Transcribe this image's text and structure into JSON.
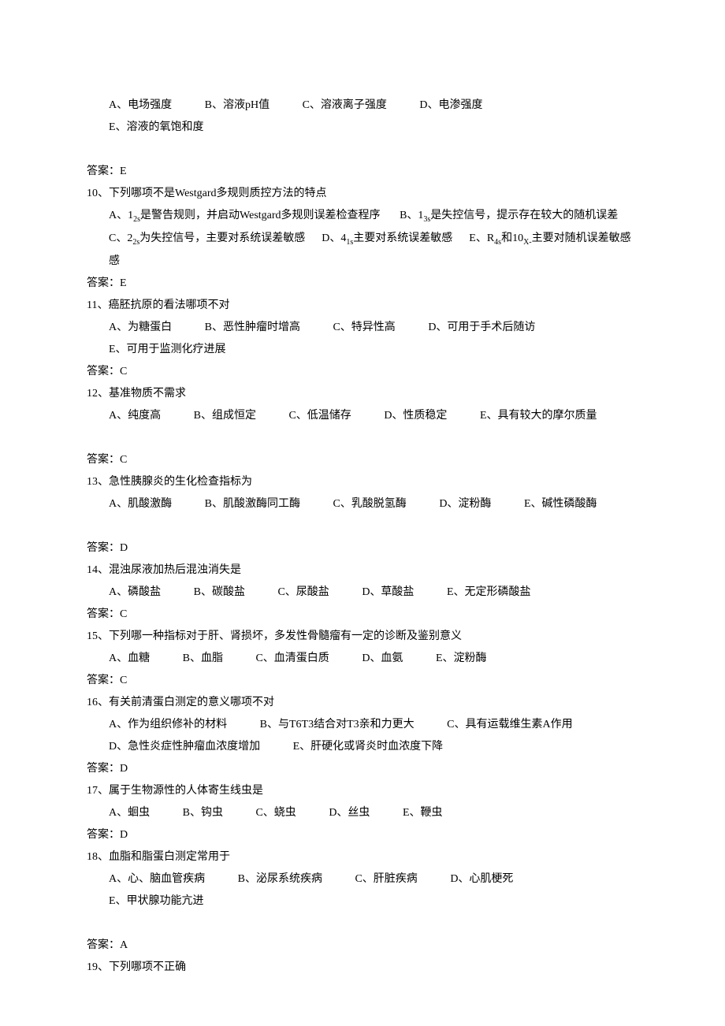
{
  "font": {
    "family": "SimSun",
    "size_pt": 10.5
  },
  "colors": {
    "text": "#000000",
    "background": "#ffffff"
  },
  "q9_options": {
    "a": "A、电场强度",
    "b": "B、溶液pH值",
    "c": "C、溶液离子强度",
    "d": "D、电渗强度",
    "e": "E、溶液的氧饱和度"
  },
  "a9": "答案：E",
  "q10": "10、下列哪项不是Westgard多规则质控方法的特点",
  "q10_opts": {
    "a_prefix": "A、1",
    "a_sub": "2s",
    "a_suffix": "是警告规则，并启动Westgard多规则误差检查程序",
    "b_prefix": "B、1",
    "b_sub": "3s",
    "b_suffix": "是失控信号，提示存在较大的随机误差",
    "c_prefix": "C、2",
    "c_sub": "2s",
    "c_suffix": "为失控信号，主要对系统误差敏感",
    "d_prefix": "D、4",
    "d_sub": "1s",
    "d_suffix": "主要对系统误差敏感",
    "e1_prefix": "E、R",
    "e1_sub": "4s",
    "e_mid": "和10",
    "e2_sub": "X-",
    "e_suffix": "主要对随机误差敏感"
  },
  "a10": "答案：E",
  "q11": "11、癌胚抗原的看法哪项不对",
  "q11_opts": {
    "a": "A、为糖蛋白",
    "b": "B、恶性肿瘤时增高",
    "c": "C、特异性高",
    "d": "D、可用于手术后随访",
    "e": "E、可用于监测化疗进展"
  },
  "a11": "答案：C",
  "q12": "12、基准物质不需求",
  "q12_opts": {
    "a": "A、纯度高",
    "b": "B、组成恒定",
    "c": "C、低温储存",
    "d": "D、性质稳定",
    "e": "E、具有较大的摩尔质量"
  },
  "a12": "答案：C",
  "q13": "13、急性胰腺炎的生化检查指标为",
  "q13_opts": {
    "a": "A、肌酸激酶",
    "b": "B、肌酸激酶同工酶",
    "c": "C、乳酸脱氢酶",
    "d": "D、淀粉酶",
    "e": "E、碱性磷酸酶"
  },
  "a13": "答案：D",
  "q14": "14、混浊尿液加热后混浊消失是",
  "q14_opts": {
    "a": "A、磷酸盐",
    "b": "B、碳酸盐",
    "c": "C、尿酸盐",
    "d": "D、草酸盐",
    "e": "E、无定形磷酸盐"
  },
  "a14": "答案：C",
  "q15": "15、下列哪一种指标对于肝、肾损坏，多发性骨髓瘤有一定的诊断及鉴别意义",
  "q15_opts": {
    "a": "A、血糖",
    "b": "B、血脂",
    "c": "C、血清蛋白质",
    "d": "D、血氨",
    "e": "E、淀粉酶"
  },
  "a15": "答案：C",
  "q16": "16、有关前清蛋白测定的意义哪项不对",
  "q16_opts": {
    "a": "A、作为组织修补的材料",
    "b": "B、与T6T3结合对T3亲和力更大",
    "c": "C、具有运载维生素A作用",
    "d": "D、急性炎症性肿瘤血浓度增加",
    "e": "E、肝硬化或肾炎时血浓度下降"
  },
  "a16": "答案：D",
  "q17": "17、属于生物源性的人体寄生线虫是",
  "q17_opts": {
    "a": "A、蛔虫",
    "b": "B、钩虫",
    "c": "C、蛲虫",
    "d": "D、丝虫",
    "e": "E、鞭虫"
  },
  "a17": "答案：D",
  "q18": "18、血脂和脂蛋白测定常用于",
  "q18_opts": {
    "a": "A、心、脑血管疾病",
    "b": "B、泌尿系统疾病",
    "c": "C、肝脏疾病",
    "d": "D、心肌梗死",
    "e": "E、甲状腺功能亢进"
  },
  "a18": "答案：A",
  "q19": "19、下列哪项不正确"
}
